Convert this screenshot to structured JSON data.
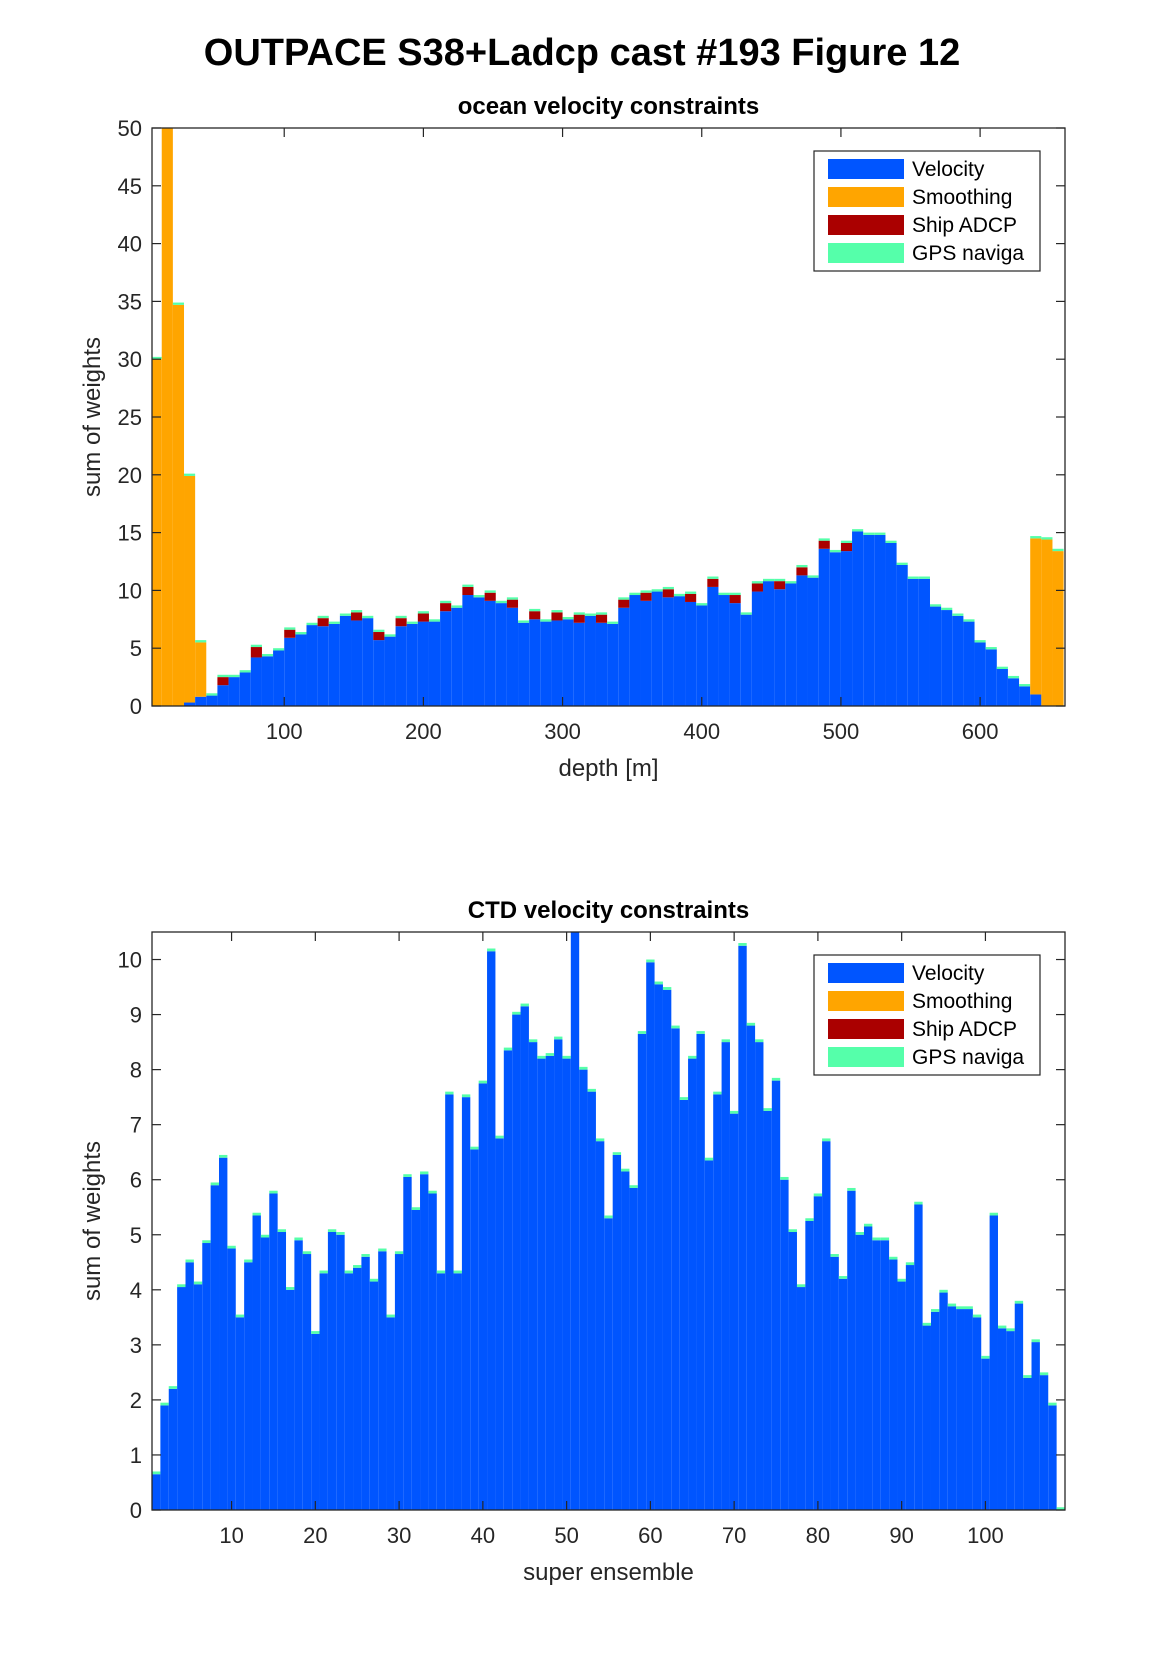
{
  "figure": {
    "title": "OUTPACE S38+Ladcp cast #193  Figure 12"
  },
  "colors": {
    "velocity": "#0055ff",
    "smoothing": "#ffa500",
    "ship_adcp": "#aa0000",
    "gps": "#55ffaa"
  },
  "legend": [
    "Velocity",
    "Smoothing",
    "Ship ADCP",
    "GPS naviga"
  ],
  "chart_data": [
    {
      "type": "bar",
      "stacked": true,
      "title": "ocean velocity constraints",
      "xlabel": "depth [m]",
      "ylabel": "sum of weights",
      "xlim": [
        5,
        661
      ],
      "ylim": [
        0,
        50
      ],
      "xticks": [
        100,
        200,
        300,
        400,
        500,
        600
      ],
      "yticks": [
        0,
        5,
        10,
        15,
        20,
        25,
        30,
        35,
        40,
        45,
        50
      ],
      "legend_position": "top-right",
      "bin_width": 8,
      "x": [
        8,
        16,
        24,
        32,
        40,
        48,
        56,
        64,
        72,
        80,
        88,
        96,
        104,
        112,
        120,
        128,
        136,
        144,
        152,
        160,
        168,
        176,
        184,
        192,
        200,
        208,
        216,
        224,
        232,
        240,
        248,
        256,
        264,
        272,
        280,
        288,
        296,
        304,
        312,
        320,
        328,
        336,
        344,
        352,
        360,
        368,
        376,
        384,
        392,
        400,
        408,
        416,
        424,
        432,
        440,
        448,
        456,
        464,
        472,
        480,
        488,
        496,
        504,
        512,
        520,
        528,
        536,
        544,
        552,
        560,
        568,
        576,
        584,
        592,
        600,
        608,
        616,
        624,
        632,
        640,
        648,
        656
      ],
      "series": [
        {
          "name": "Velocity",
          "values": [
            0,
            0,
            0,
            0.3,
            0.8,
            0.9,
            1.8,
            2.5,
            2.9,
            4.2,
            4.3,
            4.8,
            5.9,
            6.2,
            7.0,
            6.9,
            7.1,
            7.8,
            7.4,
            7.6,
            5.7,
            6.0,
            6.9,
            7.1,
            7.3,
            7.3,
            8.2,
            8.5,
            9.6,
            9.4,
            9.1,
            8.9,
            8.5,
            7.2,
            7.5,
            7.3,
            7.4,
            7.5,
            7.2,
            7.8,
            7.2,
            7.1,
            8.5,
            9.6,
            9.1,
            9.9,
            9.4,
            9.5,
            9.0,
            8.7,
            10.3,
            9.6,
            8.9,
            7.9,
            9.9,
            10.8,
            10.1,
            10.6,
            11.3,
            11.1,
            13.6,
            13.3,
            13.4,
            15.1,
            14.8,
            14.8,
            14.1,
            12.2,
            11.0,
            11.0,
            8.6,
            8.3,
            7.8,
            7.3,
            5.5,
            4.9,
            3.2,
            2.4,
            1.7,
            1.0,
            0,
            0
          ]
        },
        {
          "name": "Smoothing",
          "values": [
            30,
            50,
            34.7,
            19.6,
            4.7,
            0,
            0,
            0,
            0,
            0,
            0,
            0,
            0,
            0,
            0,
            0,
            0,
            0,
            0,
            0,
            0,
            0,
            0,
            0,
            0,
            0,
            0,
            0,
            0,
            0,
            0,
            0,
            0,
            0,
            0,
            0,
            0,
            0,
            0,
            0,
            0,
            0,
            0,
            0,
            0,
            0,
            0,
            0,
            0,
            0,
            0,
            0,
            0,
            0,
            0,
            0,
            0,
            0,
            0,
            0,
            0,
            0,
            0,
            0,
            0,
            0,
            0,
            0,
            0,
            0,
            0,
            0,
            0,
            0,
            0,
            0,
            0,
            0,
            0,
            13.5,
            14.4,
            13.4
          ]
        },
        {
          "name": "Ship ADCP",
          "values": [
            0,
            0,
            0,
            0,
            0,
            0,
            0.7,
            0,
            0,
            0.9,
            0,
            0,
            0.7,
            0,
            0,
            0.7,
            0,
            0,
            0.7,
            0,
            0.7,
            0,
            0.7,
            0,
            0.7,
            0,
            0.7,
            0,
            0.7,
            0,
            0.7,
            0,
            0.7,
            0,
            0.7,
            0,
            0.7,
            0,
            0.7,
            0,
            0.7,
            0,
            0.7,
            0,
            0.7,
            0,
            0.7,
            0,
            0.7,
            0,
            0.7,
            0,
            0.7,
            0,
            0.7,
            0,
            0.7,
            0,
            0.7,
            0,
            0.7,
            0,
            0.7,
            0,
            0,
            0,
            0,
            0,
            0,
            0,
            0,
            0,
            0,
            0,
            0,
            0,
            0,
            0,
            0,
            0,
            0,
            0
          ]
        },
        {
          "name": "GPS naviga",
          "values": [
            0.2,
            0.2,
            0.2,
            0.2,
            0.2,
            0.2,
            0.2,
            0.2,
            0.2,
            0.2,
            0.2,
            0.2,
            0.2,
            0.2,
            0.2,
            0.2,
            0.2,
            0.2,
            0.2,
            0.2,
            0.2,
            0.2,
            0.2,
            0.2,
            0.2,
            0.2,
            0.2,
            0.2,
            0.2,
            0.2,
            0.2,
            0.2,
            0.2,
            0.2,
            0.2,
            0.2,
            0.2,
            0.2,
            0.2,
            0.2,
            0.2,
            0.2,
            0.2,
            0.2,
            0.2,
            0.2,
            0.2,
            0.2,
            0.2,
            0.2,
            0.2,
            0.2,
            0.2,
            0.2,
            0.2,
            0.2,
            0.2,
            0.2,
            0.2,
            0.2,
            0.2,
            0.2,
            0.2,
            0.2,
            0.2,
            0.2,
            0.2,
            0.2,
            0.2,
            0.2,
            0.2,
            0.2,
            0.2,
            0.2,
            0.2,
            0.2,
            0.2,
            0.2,
            0.2,
            0.2,
            0.2,
            0.2
          ]
        }
      ]
    },
    {
      "type": "bar",
      "stacked": true,
      "title": "CTD velocity constraints",
      "xlabel": "super ensemble",
      "ylabel": "sum of weights",
      "xlim": [
        0.5,
        109.5
      ],
      "ylim": [
        0,
        10.5
      ],
      "xticks": [
        10,
        20,
        30,
        40,
        50,
        60,
        70,
        80,
        90,
        100
      ],
      "yticks": [
        0,
        1,
        2,
        3,
        4,
        5,
        6,
        7,
        8,
        9,
        10
      ],
      "legend_position": "top-right",
      "bin_width": 1,
      "x": [
        1,
        2,
        3,
        4,
        5,
        6,
        7,
        8,
        9,
        10,
        11,
        12,
        13,
        14,
        15,
        16,
        17,
        18,
        19,
        20,
        21,
        22,
        23,
        24,
        25,
        26,
        27,
        28,
        29,
        30,
        31,
        32,
        33,
        34,
        35,
        36,
        37,
        38,
        39,
        40,
        41,
        42,
        43,
        44,
        45,
        46,
        47,
        48,
        49,
        50,
        51,
        52,
        53,
        54,
        55,
        56,
        57,
        58,
        59,
        60,
        61,
        62,
        63,
        64,
        65,
        66,
        67,
        68,
        69,
        70,
        71,
        72,
        73,
        74,
        75,
        76,
        77,
        78,
        79,
        80,
        81,
        82,
        83,
        84,
        85,
        86,
        87,
        88,
        89,
        90,
        91,
        92,
        93,
        94,
        95,
        96,
        97,
        98,
        99,
        100,
        101,
        102,
        103,
        104,
        105,
        106,
        107,
        108,
        109
      ],
      "series": [
        {
          "name": "Velocity",
          "values": [
            0.65,
            1.9,
            2.2,
            4.05,
            4.5,
            4.1,
            4.85,
            5.9,
            6.4,
            4.75,
            3.5,
            4.5,
            5.35,
            4.95,
            5.75,
            5.05,
            4.0,
            4.9,
            4.65,
            3.2,
            4.3,
            5.05,
            5.0,
            4.3,
            4.4,
            4.6,
            4.15,
            4.7,
            3.5,
            4.65,
            6.05,
            5.45,
            6.1,
            5.75,
            4.3,
            7.55,
            4.3,
            7.5,
            6.55,
            7.75,
            10.15,
            6.75,
            8.35,
            9.0,
            9.15,
            8.5,
            8.2,
            8.25,
            8.55,
            8.2,
            10.5,
            8.0,
            7.6,
            6.7,
            5.3,
            6.45,
            6.15,
            5.85,
            8.65,
            9.95,
            9.55,
            9.45,
            8.75,
            7.45,
            8.2,
            8.65,
            6.35,
            7.55,
            8.5,
            7.2,
            10.25,
            8.8,
            8.5,
            7.25,
            7.8,
            6.0,
            5.05,
            4.05,
            5.25,
            5.7,
            6.7,
            4.6,
            4.2,
            5.8,
            5.0,
            5.15,
            4.9,
            4.9,
            4.55,
            4.15,
            4.45,
            5.55,
            3.35,
            3.6,
            3.95,
            3.7,
            3.65,
            3.65,
            3.5,
            2.75,
            5.35,
            3.3,
            3.25,
            3.75,
            2.4,
            3.05,
            2.45,
            1.9,
            0
          ]
        },
        {
          "name": "Smoothing",
          "values": [
            0,
            0,
            0,
            0,
            0,
            0,
            0,
            0,
            0,
            0,
            0,
            0,
            0,
            0,
            0,
            0,
            0,
            0,
            0,
            0,
            0,
            0,
            0,
            0,
            0,
            0,
            0,
            0,
            0,
            0,
            0,
            0,
            0,
            0,
            0,
            0,
            0,
            0,
            0,
            0,
            0,
            0,
            0,
            0,
            0,
            0,
            0,
            0,
            0,
            0,
            0,
            0,
            0,
            0,
            0,
            0,
            0,
            0,
            0,
            0,
            0,
            0,
            0,
            0,
            0,
            0,
            0,
            0,
            0,
            0,
            0,
            0,
            0,
            0,
            0,
            0,
            0,
            0,
            0,
            0,
            0,
            0,
            0,
            0,
            0,
            0,
            0,
            0,
            0,
            0,
            0,
            0,
            0,
            0,
            0,
            0,
            0,
            0,
            0,
            0,
            0,
            0,
            0,
            0,
            0,
            0,
            0,
            0,
            0
          ]
        },
        {
          "name": "Ship ADCP",
          "values": [
            0,
            0,
            0,
            0,
            0,
            0,
            0,
            0,
            0,
            0,
            0,
            0,
            0,
            0,
            0,
            0,
            0,
            0,
            0,
            0,
            0,
            0,
            0,
            0,
            0,
            0,
            0,
            0,
            0,
            0,
            0,
            0,
            0,
            0,
            0,
            0,
            0,
            0,
            0,
            0,
            0,
            0,
            0,
            0,
            0,
            0,
            0,
            0,
            0,
            0,
            0,
            0,
            0,
            0,
            0,
            0,
            0,
            0,
            0,
            0,
            0,
            0,
            0,
            0,
            0,
            0,
            0,
            0,
            0,
            0,
            0,
            0,
            0,
            0,
            0,
            0,
            0,
            0,
            0,
            0,
            0,
            0,
            0,
            0,
            0,
            0,
            0,
            0,
            0,
            0,
            0,
            0,
            0,
            0,
            0,
            0,
            0,
            0,
            0,
            0,
            0,
            0,
            0,
            0,
            0,
            0,
            0,
            0,
            0
          ]
        },
        {
          "name": "GPS naviga",
          "values": [
            0.05,
            0.05,
            0.05,
            0.05,
            0.05,
            0.05,
            0.05,
            0.05,
            0.05,
            0.05,
            0.05,
            0.05,
            0.05,
            0.05,
            0.05,
            0.05,
            0.05,
            0.05,
            0.05,
            0.05,
            0.05,
            0.05,
            0.05,
            0.05,
            0.05,
            0.05,
            0.05,
            0.05,
            0.05,
            0.05,
            0.05,
            0.05,
            0.05,
            0.05,
            0.05,
            0.05,
            0.05,
            0.05,
            0.05,
            0.05,
            0.05,
            0.05,
            0.05,
            0.05,
            0.05,
            0.05,
            0.05,
            0.05,
            0.05,
            0.05,
            0.05,
            0.05,
            0.05,
            0.05,
            0.05,
            0.05,
            0.05,
            0.05,
            0.05,
            0.05,
            0.05,
            0.05,
            0.05,
            0.05,
            0.05,
            0.05,
            0.05,
            0.05,
            0.05,
            0.05,
            0.05,
            0.05,
            0.05,
            0.05,
            0.05,
            0.05,
            0.05,
            0.05,
            0.05,
            0.05,
            0.05,
            0.05,
            0.05,
            0.05,
            0.05,
            0.05,
            0.05,
            0.05,
            0.05,
            0.05,
            0.05,
            0.05,
            0.05,
            0.05,
            0.05,
            0.05,
            0.05,
            0.05,
            0.05,
            0.05,
            0.05,
            0.05,
            0.05,
            0.05,
            0.05,
            0.05,
            0.05,
            0.05,
            0.05
          ]
        }
      ]
    }
  ]
}
